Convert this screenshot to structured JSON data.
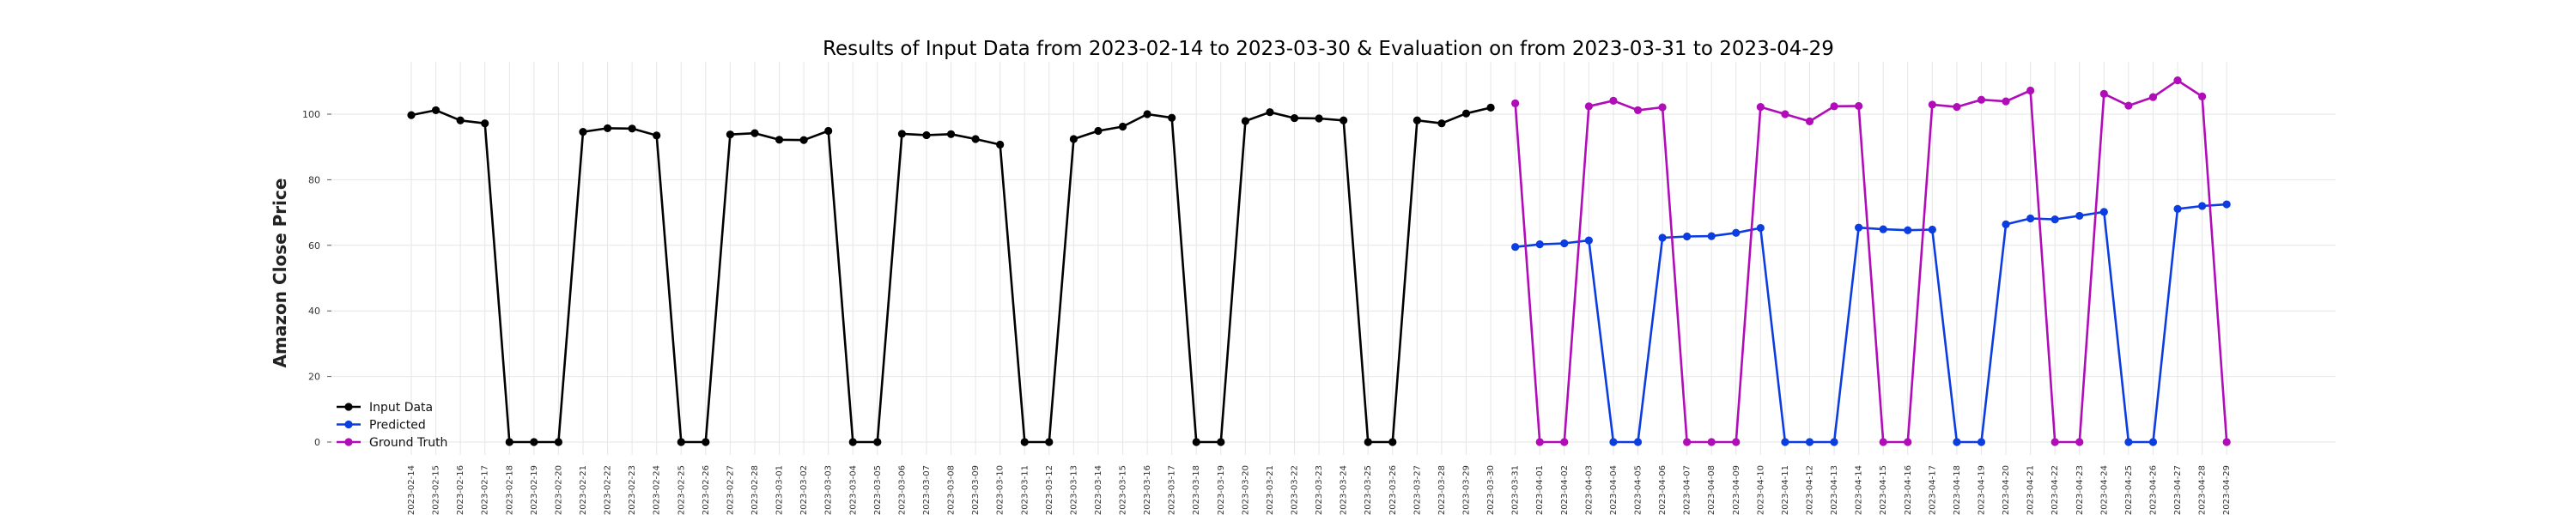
{
  "chart_data": {
    "type": "line",
    "title": "Results of Input Data from 2023-02-14 to 2023-03-30 & Evaluation on from 2023-03-31 to 2023-04-29",
    "xlabel": "",
    "ylabel": "Amazon Close Price",
    "ylim": [
      -8,
      116
    ],
    "yticks": [
      "0",
      "20",
      "40",
      "60",
      "80",
      "100"
    ],
    "grid": true,
    "legend_position": "lower-left",
    "categories": [
      "2023-02-14",
      "2023-02-15",
      "2023-02-16",
      "2023-02-17",
      "2023-02-18",
      "2023-02-19",
      "2023-02-20",
      "2023-02-21",
      "2023-02-22",
      "2023-02-23",
      "2023-02-24",
      "2023-02-25",
      "2023-02-26",
      "2023-02-27",
      "2023-02-28",
      "2023-03-01",
      "2023-03-02",
      "2023-03-03",
      "2023-03-04",
      "2023-03-05",
      "2023-03-06",
      "2023-03-07",
      "2023-03-08",
      "2023-03-09",
      "2023-03-10",
      "2023-03-11",
      "2023-03-12",
      "2023-03-13",
      "2023-03-14",
      "2023-03-15",
      "2023-03-16",
      "2023-03-17",
      "2023-03-18",
      "2023-03-19",
      "2023-03-20",
      "2023-03-21",
      "2023-03-22",
      "2023-03-23",
      "2023-03-24",
      "2023-03-25",
      "2023-03-26",
      "2023-03-27",
      "2023-03-28",
      "2023-03-29",
      "2023-03-30",
      "2023-03-31",
      "2023-04-01",
      "2023-04-02",
      "2023-04-03",
      "2023-04-04",
      "2023-04-05",
      "2023-04-06",
      "2023-04-07",
      "2023-04-08",
      "2023-04-09",
      "2023-04-10",
      "2023-04-11",
      "2023-04-12",
      "2023-04-13",
      "2023-04-14",
      "2023-04-15",
      "2023-04-16",
      "2023-04-17",
      "2023-04-18",
      "2023-04-19",
      "2023-04-20",
      "2023-04-21",
      "2023-04-22",
      "2023-04-23",
      "2023-04-24",
      "2023-04-25",
      "2023-04-26",
      "2023-04-27",
      "2023-04-28",
      "2023-04-29"
    ],
    "series": [
      {
        "name": "Input Data",
        "color": "#000000",
        "x": [
          "2023-02-14",
          "2023-02-15",
          "2023-02-16",
          "2023-02-17",
          "2023-02-18",
          "2023-02-19",
          "2023-02-20",
          "2023-02-21",
          "2023-02-22",
          "2023-02-23",
          "2023-02-24",
          "2023-02-25",
          "2023-02-26",
          "2023-02-27",
          "2023-02-28",
          "2023-03-01",
          "2023-03-02",
          "2023-03-03",
          "2023-03-04",
          "2023-03-05",
          "2023-03-06",
          "2023-03-07",
          "2023-03-08",
          "2023-03-09",
          "2023-03-10",
          "2023-03-11",
          "2023-03-12",
          "2023-03-13",
          "2023-03-14",
          "2023-03-15",
          "2023-03-16",
          "2023-03-17",
          "2023-03-18",
          "2023-03-19",
          "2023-03-20",
          "2023-03-21",
          "2023-03-22",
          "2023-03-23",
          "2023-03-24",
          "2023-03-25",
          "2023-03-26",
          "2023-03-27",
          "2023-03-28",
          "2023-03-29",
          "2023-03-30"
        ],
        "values": [
          99.7,
          101.2,
          98.1,
          97.2,
          0,
          0,
          0,
          94.6,
          95.7,
          95.6,
          93.5,
          0,
          0,
          93.8,
          94.2,
          92.2,
          92.1,
          94.9,
          0,
          0,
          94.0,
          93.6,
          93.9,
          92.4,
          90.7,
          0,
          0,
          92.4,
          94.9,
          96.2,
          100.0,
          98.9,
          0,
          0,
          97.9,
          100.6,
          98.8,
          98.7,
          98.1,
          0,
          0,
          98.1,
          97.2,
          100.2,
          102.0
        ]
      },
      {
        "name": "Predicted",
        "color": "#0b3de0",
        "x": [
          "2023-03-31",
          "2023-04-01",
          "2023-04-02",
          "2023-04-03",
          "2023-04-04",
          "2023-04-05",
          "2023-04-06",
          "2023-04-07",
          "2023-04-08",
          "2023-04-09",
          "2023-04-10",
          "2023-04-11",
          "2023-04-12",
          "2023-04-13",
          "2023-04-14",
          "2023-04-15",
          "2023-04-16",
          "2023-04-17",
          "2023-04-18",
          "2023-04-19",
          "2023-04-20",
          "2023-04-21",
          "2023-04-22",
          "2023-04-23",
          "2023-04-24",
          "2023-04-25",
          "2023-04-26",
          "2023-04-27",
          "2023-04-28",
          "2023-04-29"
        ],
        "values": [
          59.5,
          60.3,
          60.6,
          61.5,
          0,
          0,
          62.3,
          62.7,
          62.8,
          63.8,
          65.3,
          0,
          0,
          0,
          65.4,
          64.9,
          64.6,
          64.8,
          0,
          0,
          66.4,
          68.2,
          67.9,
          69.0,
          70.2,
          0,
          0,
          71.1,
          72.0,
          72.5
        ]
      },
      {
        "name": "Ground Truth",
        "color": "#b00cb8",
        "x": [
          "2023-03-31",
          "2023-04-01",
          "2023-04-02",
          "2023-04-03",
          "2023-04-04",
          "2023-04-05",
          "2023-04-06",
          "2023-04-07",
          "2023-04-08",
          "2023-04-09",
          "2023-04-10",
          "2023-04-11",
          "2023-04-12",
          "2023-04-13",
          "2023-04-14",
          "2023-04-15",
          "2023-04-16",
          "2023-04-17",
          "2023-04-18",
          "2023-04-19",
          "2023-04-20",
          "2023-04-21",
          "2023-04-22",
          "2023-04-23",
          "2023-04-24",
          "2023-04-25",
          "2023-04-26",
          "2023-04-27",
          "2023-04-28",
          "2023-04-29"
        ],
        "values": [
          103.3,
          0,
          0,
          102.4,
          104.1,
          101.2,
          102.1,
          0,
          0,
          0,
          102.2,
          100.0,
          97.8,
          102.4,
          102.5,
          0,
          0,
          102.9,
          102.2,
          104.4,
          103.9,
          107.2,
          0,
          0,
          106.2,
          102.6,
          105.2,
          110.3,
          105.4,
          0
        ]
      }
    ]
  }
}
